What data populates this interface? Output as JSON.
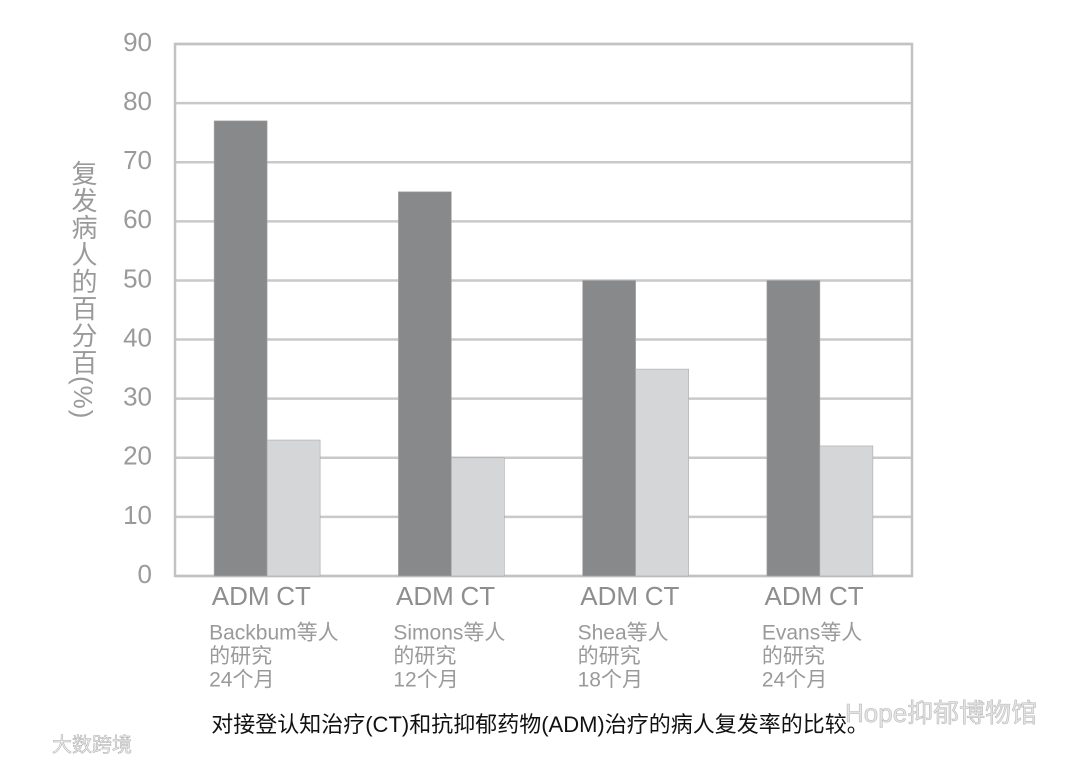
{
  "chart_data": {
    "type": "bar",
    "caption": "对接登认知治疗(CT)和抗抑郁药物(ADM)治疗的病人复发率的比较。",
    "y_label": "复发病人的百分百(%)",
    "categories": [
      [
        "Backbum等人",
        "的研究",
        "24个月"
      ],
      [
        "Simons等人",
        "的研究",
        "12个月"
      ],
      [
        "Shea等人",
        "的研究",
        "18个月"
      ],
      [
        "Evans等人",
        "的研究",
        "24个月"
      ]
    ],
    "series": [
      {
        "name": "ADM",
        "color": "#87898b",
        "values": [
          77,
          65,
          50,
          50
        ]
      },
      {
        "name": "CT",
        "color": "#d5d6d8",
        "values": [
          23,
          20,
          35,
          22
        ]
      }
    ],
    "ylim": [
      0,
      90
    ],
    "yticks": [
      0,
      10,
      20,
      30,
      40,
      50,
      60,
      70,
      80,
      90
    ],
    "grid": true,
    "watermarks": [
      "Hope抑郁博物馆",
      "大数跨境"
    ]
  }
}
